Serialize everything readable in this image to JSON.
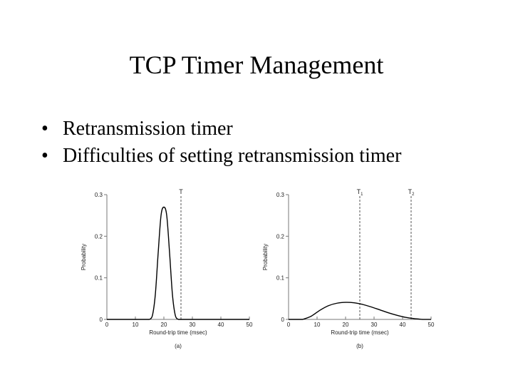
{
  "slide": {
    "title": "TCP Timer Management",
    "bullets": [
      "Retransmission timer",
      "Difficulties of setting retransmission timer"
    ]
  },
  "chart_data": [
    {
      "type": "line",
      "caption": "(a)",
      "xlabel": "Round-trip time (msec)",
      "ylabel": "Probability",
      "xlim": [
        0,
        50
      ],
      "ylim": [
        0,
        0.3
      ],
      "xticks": [
        0,
        10,
        20,
        30,
        40,
        50
      ],
      "yticks": [
        0,
        0.1,
        0.2,
        0.3
      ],
      "ytick_labels": [
        "0",
        "0.1",
        "0.2",
        "0.3"
      ],
      "x": [
        15,
        16,
        17,
        18,
        19,
        20,
        21,
        22,
        23,
        24,
        25
      ],
      "y": [
        0,
        0.01,
        0.06,
        0.16,
        0.25,
        0.27,
        0.25,
        0.16,
        0.06,
        0.01,
        0
      ],
      "timeouts": [
        {
          "label": "T",
          "x": 26
        }
      ]
    },
    {
      "type": "line",
      "caption": "(b)",
      "xlabel": "Round-trip time (msec)",
      "ylabel": "Probability",
      "xlim": [
        0,
        50
      ],
      "ylim": [
        0,
        0.3
      ],
      "xticks": [
        0,
        10,
        20,
        30,
        40,
        50
      ],
      "yticks": [
        0,
        0.1,
        0.2,
        0.3
      ],
      "ytick_labels": [
        "0",
        "0.1",
        "0.2",
        "0.3"
      ],
      "x": [
        5,
        8,
        11,
        14,
        17,
        20,
        23,
        26,
        29,
        32,
        35,
        38,
        41,
        44,
        47
      ],
      "y": [
        0,
        0.008,
        0.022,
        0.033,
        0.039,
        0.041,
        0.04,
        0.036,
        0.03,
        0.023,
        0.016,
        0.01,
        0.005,
        0.002,
        0
      ],
      "timeouts": [
        {
          "label": "T1",
          "x": 25
        },
        {
          "label": "T2",
          "x": 43
        }
      ]
    }
  ]
}
